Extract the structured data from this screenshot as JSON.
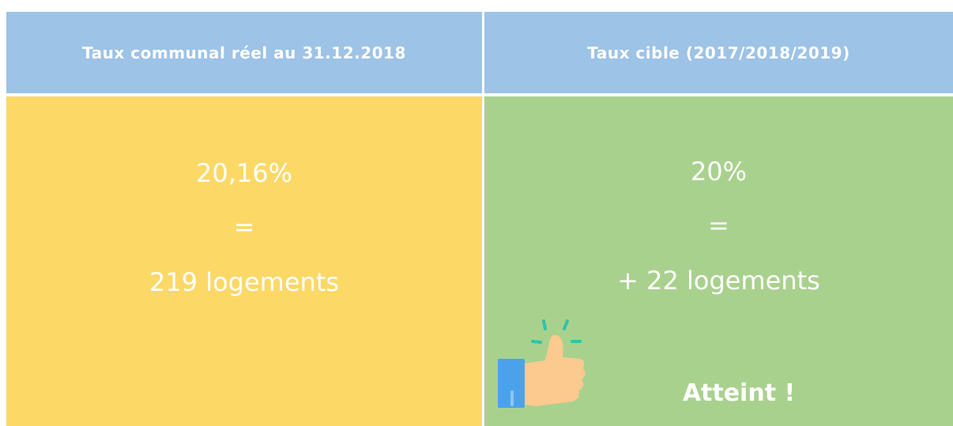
{
  "table": {
    "header": [
      "Taux communal réel au 31.12.2018",
      "Taux cible (2017/2018/2019)"
    ],
    "cells": [
      [
        "20,16%",
        "=",
        "219 logements"
      ],
      [
        "20%",
        "=",
        "+ 22 logements"
      ]
    ],
    "status": "Atteint !"
  }
}
